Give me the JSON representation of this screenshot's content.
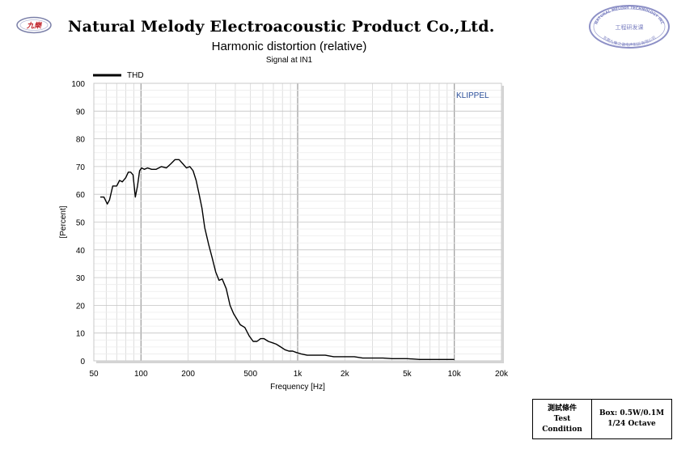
{
  "header": {
    "logo_text": "九樂",
    "company_name": "Natural Melody Electroacoustic Product Co.,Ltd.",
    "seal_outer_text": "NATURAL MELODY TECHNOLOGY INC",
    "seal_inner_text": "工程研发课",
    "seal_bottom_text": "东莞九樂之音电声制品有限公司"
  },
  "chart_data": {
    "type": "line",
    "title": "Harmonic distortion (relative)",
    "subtitle": "Signal at IN1",
    "xlabel": "Frequency [Hz]",
    "ylabel": "[Percent]",
    "watermark": "KLIPPEL",
    "x_scale": "log",
    "xlim": [
      50,
      20000
    ],
    "ylim": [
      0,
      100
    ],
    "x_ticks": [
      50,
      100,
      200,
      500,
      1000,
      2000,
      5000,
      10000,
      20000
    ],
    "x_tick_labels": [
      "50",
      "100",
      "200",
      "500",
      "1k",
      "2k",
      "5k",
      "10k",
      "20k"
    ],
    "y_ticks": [
      0,
      10,
      20,
      30,
      40,
      50,
      60,
      70,
      80,
      90,
      100
    ],
    "y_tick_labels": [
      "0",
      "10",
      "20",
      "30",
      "40",
      "50",
      "60",
      "70",
      "80",
      "90",
      "100"
    ],
    "grid": true,
    "legend_position": "top-left",
    "series": [
      {
        "name": "THD",
        "color": "#000000",
        "x": [
          55,
          58,
          61,
          63,
          66,
          70,
          73,
          76,
          80,
          83,
          86,
          89,
          92,
          95,
          98,
          101,
          105,
          110,
          117,
          125,
          135,
          145,
          155,
          165,
          175,
          185,
          195,
          205,
          215,
          225,
          235,
          245,
          255,
          270,
          285,
          300,
          315,
          330,
          350,
          370,
          390,
          410,
          430,
          460,
          490,
          520,
          550,
          580,
          610,
          650,
          690,
          730,
          780,
          830,
          880,
          930,
          980,
          1050,
          1150,
          1300,
          1500,
          1700,
          2000,
          2300,
          2600,
          3000,
          3500,
          4000,
          5000,
          6000,
          7000,
          8000,
          9000,
          10000
        ],
        "y": [
          59,
          59,
          56.5,
          58,
          63,
          63,
          65,
          64.5,
          66,
          68,
          68,
          67,
          59,
          63,
          68.5,
          69.5,
          69,
          69.5,
          69,
          69,
          70,
          69.5,
          71,
          72.5,
          72.5,
          71,
          69.5,
          70,
          68.5,
          65,
          60,
          55,
          48,
          42,
          37,
          32,
          29,
          29.5,
          26,
          20,
          17,
          15,
          13,
          12,
          9,
          7,
          7,
          8,
          8,
          7,
          6.5,
          6,
          5,
          4,
          3.5,
          3.5,
          3,
          2.5,
          2,
          2,
          2,
          1.5,
          1.5,
          1.5,
          1,
          1,
          1,
          0.8,
          0.8,
          0.5,
          0.5,
          0.5,
          0.5,
          0.5
        ]
      }
    ]
  },
  "conditions": {
    "label_line1": "測試條件",
    "label_line2": "Test",
    "label_line3": "Condition",
    "value_line1": "Box: 0.5W/0.1M",
    "value_line2": "1/24  Octave"
  }
}
